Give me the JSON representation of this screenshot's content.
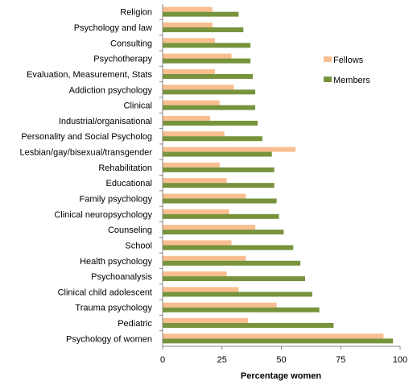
{
  "chart_data": {
    "type": "bar",
    "orientation": "horizontal",
    "categories": [
      "Religion",
      "Psychology and law",
      "Consulting",
      "Psychotherapy",
      "Evaluation, Measurement, Stats",
      "Addiction psychology",
      "Clinical",
      "Industrial/organisational",
      "Personality and Social Psycholog",
      "Lesbian/gay/bisexual/transgender",
      "Rehabilitation",
      "Educational",
      "Family psychology",
      "Clinical neuropsychology",
      "Counseling",
      "School",
      "Health psychology",
      "Psychoanalysis",
      "Clinical child adolescent",
      "Trauma psychology",
      "Pediatric",
      "Psychology of women"
    ],
    "series": [
      {
        "name": "Fellows",
        "color": "#F9BE8F",
        "values": [
          21,
          21,
          22,
          29,
          22,
          30,
          24,
          20,
          26,
          56,
          24,
          27,
          35,
          28,
          39,
          29,
          35,
          27,
          32,
          48,
          36,
          93
        ]
      },
      {
        "name": "Members",
        "color": "#77933C",
        "values": [
          32,
          34,
          37,
          37,
          38,
          39,
          39,
          40,
          42,
          46,
          47,
          47,
          48,
          49,
          51,
          55,
          58,
          60,
          63,
          66,
          72,
          97
        ]
      }
    ],
    "xlabel": "Percentage women",
    "ylabel": "",
    "xlim": [
      0,
      100
    ],
    "xticks": [
      "0",
      "25",
      "50",
      "75",
      "100"
    ],
    "grid": false,
    "legend": {
      "position": "right",
      "entries": [
        "Fellows",
        "Members"
      ]
    }
  }
}
